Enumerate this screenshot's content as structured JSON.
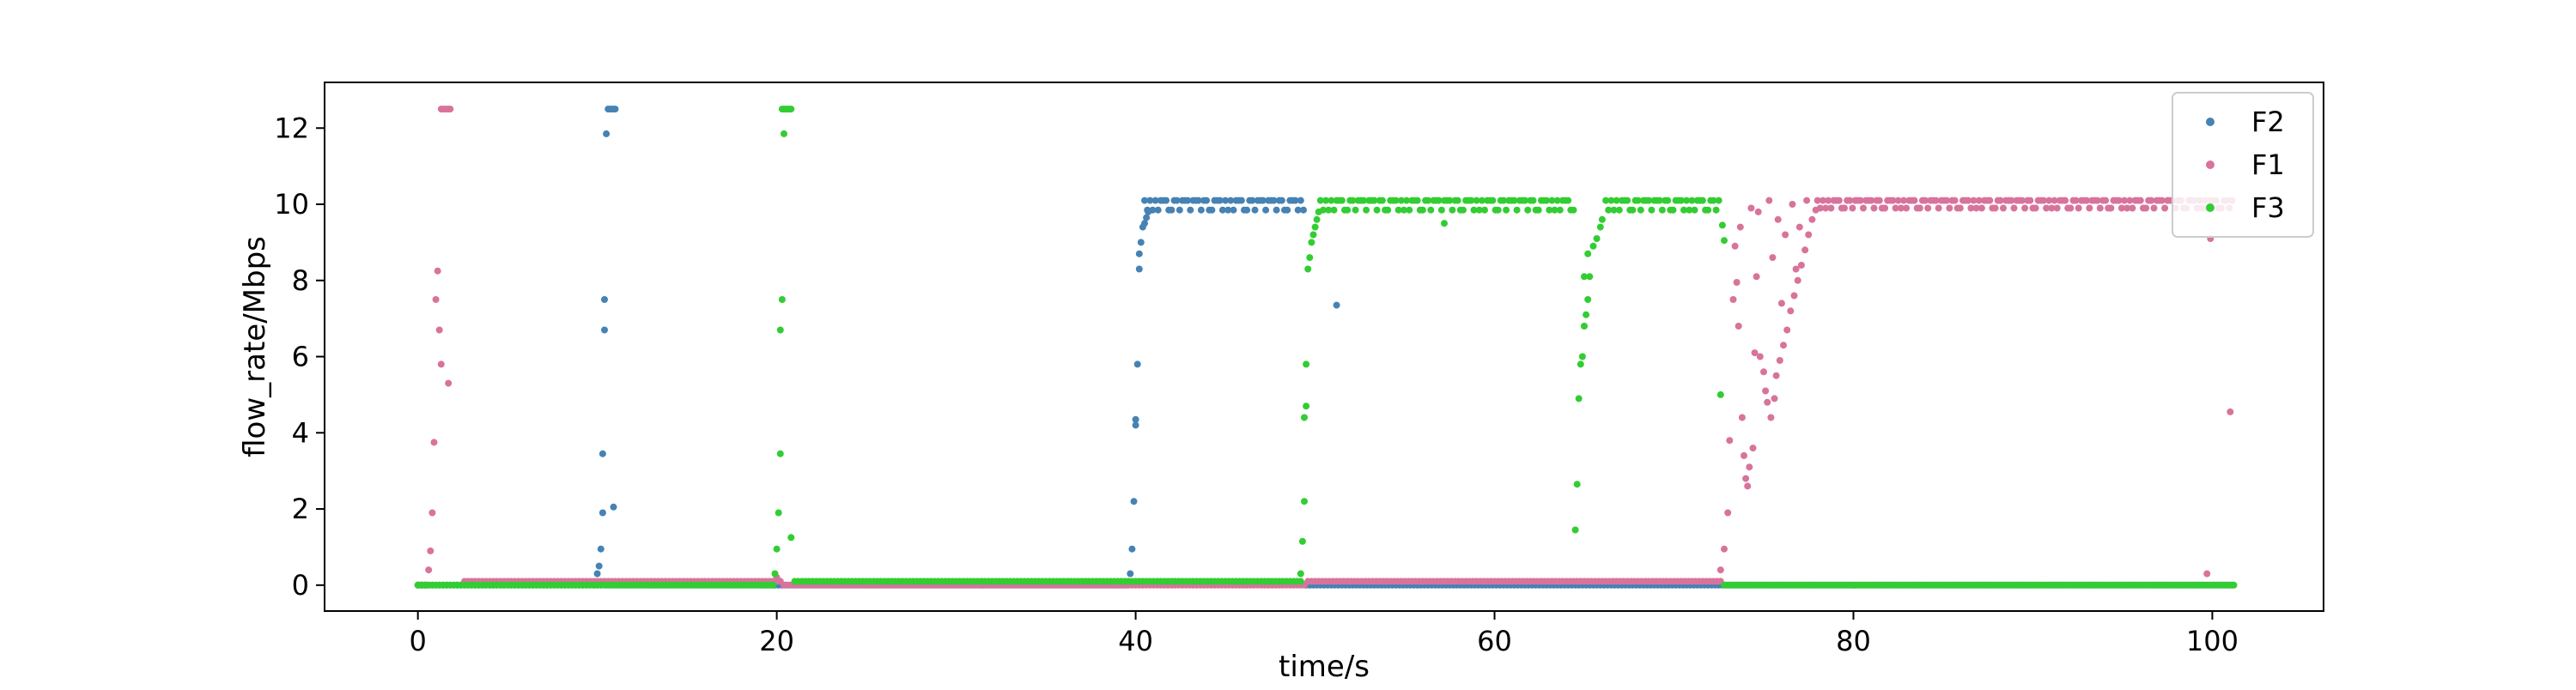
{
  "chart_data": {
    "type": "scatter",
    "title": "",
    "xlabel": "time/s",
    "ylabel": "flow_rate/Mbps",
    "xlim": [
      -5.2,
      106.2
    ],
    "ylim": [
      -0.68,
      13.2
    ],
    "xticks": [
      "0",
      "20",
      "40",
      "60",
      "80",
      "100"
    ],
    "xtick_values": [
      0,
      20,
      40,
      60,
      80,
      100
    ],
    "yticks": [
      "0",
      "2",
      "4",
      "6",
      "8",
      "10",
      "12"
    ],
    "ytick_values": [
      0,
      2,
      4,
      6,
      8,
      10,
      12
    ],
    "grid": false,
    "legend_position": "top-right",
    "series": [
      {
        "name": "F2",
        "color": "#4682b4",
        "points": [
          [
            10.0,
            0.3
          ],
          [
            10.1,
            0.5
          ],
          [
            10.2,
            0.95
          ],
          [
            10.3,
            1.9
          ],
          [
            10.3,
            3.45
          ],
          [
            10.4,
            6.7
          ],
          [
            10.4,
            7.5
          ],
          [
            10.5,
            11.85
          ],
          [
            10.9,
            2.05
          ],
          [
            39.7,
            0.3
          ],
          [
            39.8,
            0.95
          ],
          [
            39.9,
            2.2
          ],
          [
            40.0,
            4.2
          ],
          [
            40.0,
            4.35
          ],
          [
            40.1,
            5.8
          ],
          [
            40.2,
            8.3
          ],
          [
            40.2,
            8.7
          ],
          [
            40.3,
            9.0
          ],
          [
            40.4,
            9.4
          ],
          [
            40.5,
            9.5
          ],
          [
            40.6,
            9.65
          ],
          [
            40.7,
            9.8
          ],
          [
            51.2,
            7.35
          ]
        ],
        "segments": [
          {
            "x0": 0.0,
            "x1": 10.2,
            "step": 0.2,
            "y": 0.0
          },
          {
            "x0": 10.6,
            "x1": 11.0,
            "step": 0.1,
            "y": 12.5
          },
          {
            "x0": 10.5,
            "x1": 39.6,
            "step": 0.2,
            "y": 0.0
          },
          {
            "x0": 40.5,
            "x1": 49.4,
            "step": 0.15,
            "y": 10.1,
            "alt": 9.85
          },
          {
            "x0": 49.5,
            "x1": 101.2,
            "step": 0.2,
            "y": 0.0
          }
        ]
      },
      {
        "name": "F1",
        "color": "#d8739b",
        "points": [
          [
            0.6,
            0.4
          ],
          [
            0.7,
            0.9
          ],
          [
            0.8,
            1.9
          ],
          [
            0.9,
            3.75
          ],
          [
            1.0,
            7.5
          ],
          [
            1.1,
            8.25
          ],
          [
            1.2,
            6.7
          ],
          [
            1.3,
            5.8
          ],
          [
            1.7,
            5.3
          ],
          [
            20.0,
            0.2
          ],
          [
            20.2,
            0.1
          ],
          [
            72.6,
            0.4
          ],
          [
            72.8,
            0.95
          ],
          [
            73.0,
            1.9
          ],
          [
            73.1,
            3.8
          ],
          [
            73.3,
            7.5
          ],
          [
            73.5,
            7.95
          ],
          [
            73.6,
            6.8
          ],
          [
            73.8,
            4.4
          ],
          [
            73.9,
            3.4
          ],
          [
            74.0,
            2.8
          ],
          [
            74.1,
            2.6
          ],
          [
            74.2,
            3.1
          ],
          [
            74.4,
            3.6
          ],
          [
            74.5,
            6.1
          ],
          [
            74.6,
            8.1
          ],
          [
            74.8,
            6.0
          ],
          [
            75.0,
            5.6
          ],
          [
            75.1,
            5.1
          ],
          [
            75.2,
            4.8
          ],
          [
            75.4,
            4.4
          ],
          [
            75.6,
            4.9
          ],
          [
            75.7,
            5.5
          ],
          [
            75.9,
            5.9
          ],
          [
            76.1,
            6.3
          ],
          [
            76.3,
            6.7
          ],
          [
            76.5,
            7.2
          ],
          [
            76.7,
            7.6
          ],
          [
            76.9,
            8.0
          ],
          [
            77.1,
            8.4
          ],
          [
            77.3,
            8.8
          ],
          [
            77.5,
            9.2
          ],
          [
            77.7,
            9.6
          ],
          [
            77.9,
            9.85
          ],
          [
            74.7,
            9.8
          ],
          [
            75.3,
            10.1
          ],
          [
            75.8,
            9.6
          ],
          [
            76.0,
            7.4
          ],
          [
            76.2,
            9.2
          ],
          [
            76.6,
            10.0
          ],
          [
            77.0,
            9.4
          ],
          [
            77.4,
            10.1
          ],
          [
            73.7,
            9.4
          ],
          [
            73.4,
            8.9
          ],
          [
            74.3,
            9.9
          ],
          [
            75.5,
            8.6
          ],
          [
            76.8,
            8.3
          ],
          [
            99.7,
            0.3
          ],
          [
            99.9,
            9.1
          ],
          [
            101.0,
            4.55
          ]
        ],
        "segments": [
          {
            "x0": 0.0,
            "x1": 0.5,
            "step": 0.1,
            "y": 0.0
          },
          {
            "x0": 1.3,
            "x1": 1.8,
            "step": 0.1,
            "y": 12.5
          },
          {
            "x0": 2.6,
            "x1": 20.0,
            "step": 0.2,
            "y": 0.1
          },
          {
            "x0": 20.4,
            "x1": 49.4,
            "step": 0.2,
            "y": 0.0
          },
          {
            "x0": 49.6,
            "x1": 72.6,
            "step": 0.2,
            "y": 0.1
          },
          {
            "x0": 78.0,
            "x1": 101.2,
            "step": 0.15,
            "y": 10.1,
            "alt": 9.9
          }
        ]
      },
      {
        "name": "F3",
        "color": "#32cd32",
        "points": [
          [
            19.9,
            0.3
          ],
          [
            20.0,
            0.95
          ],
          [
            20.1,
            1.9
          ],
          [
            20.2,
            3.45
          ],
          [
            20.2,
            6.7
          ],
          [
            20.3,
            7.5
          ],
          [
            20.4,
            11.85
          ],
          [
            20.8,
            1.25
          ],
          [
            49.2,
            0.3
          ],
          [
            49.3,
            1.15
          ],
          [
            49.4,
            2.2
          ],
          [
            49.4,
            4.4
          ],
          [
            49.5,
            4.7
          ],
          [
            49.5,
            5.8
          ],
          [
            49.6,
            8.3
          ],
          [
            49.7,
            8.6
          ],
          [
            49.8,
            9.0
          ],
          [
            49.9,
            9.2
          ],
          [
            50.0,
            9.4
          ],
          [
            50.1,
            9.6
          ],
          [
            50.2,
            9.8
          ],
          [
            57.2,
            9.5
          ],
          [
            64.5,
            1.45
          ],
          [
            64.6,
            2.65
          ],
          [
            64.7,
            4.9
          ],
          [
            64.8,
            5.8
          ],
          [
            64.9,
            6.0
          ],
          [
            65.0,
            6.8
          ],
          [
            65.1,
            7.1
          ],
          [
            65.2,
            7.5
          ],
          [
            65.3,
            8.1
          ],
          [
            65.0,
            8.1
          ],
          [
            65.2,
            8.7
          ],
          [
            65.5,
            8.9
          ],
          [
            65.7,
            9.1
          ],
          [
            65.9,
            9.4
          ],
          [
            66.0,
            9.6
          ],
          [
            72.7,
            9.45
          ],
          [
            72.8,
            9.05
          ],
          [
            72.6,
            5.0
          ]
        ],
        "segments": [
          {
            "x0": 0.0,
            "x1": 19.8,
            "step": 0.2,
            "y": 0.0
          },
          {
            "x0": 20.3,
            "x1": 20.8,
            "step": 0.1,
            "y": 12.5
          },
          {
            "x0": 21.0,
            "x1": 49.2,
            "step": 0.2,
            "y": 0.1
          },
          {
            "x0": 50.3,
            "x1": 64.4,
            "step": 0.15,
            "y": 10.1,
            "alt": 9.85
          },
          {
            "x0": 66.2,
            "x1": 72.6,
            "step": 0.15,
            "y": 10.1,
            "alt": 9.85
          },
          {
            "x0": 72.8,
            "x1": 101.2,
            "step": 0.2,
            "y": 0.0
          }
        ]
      }
    ]
  }
}
